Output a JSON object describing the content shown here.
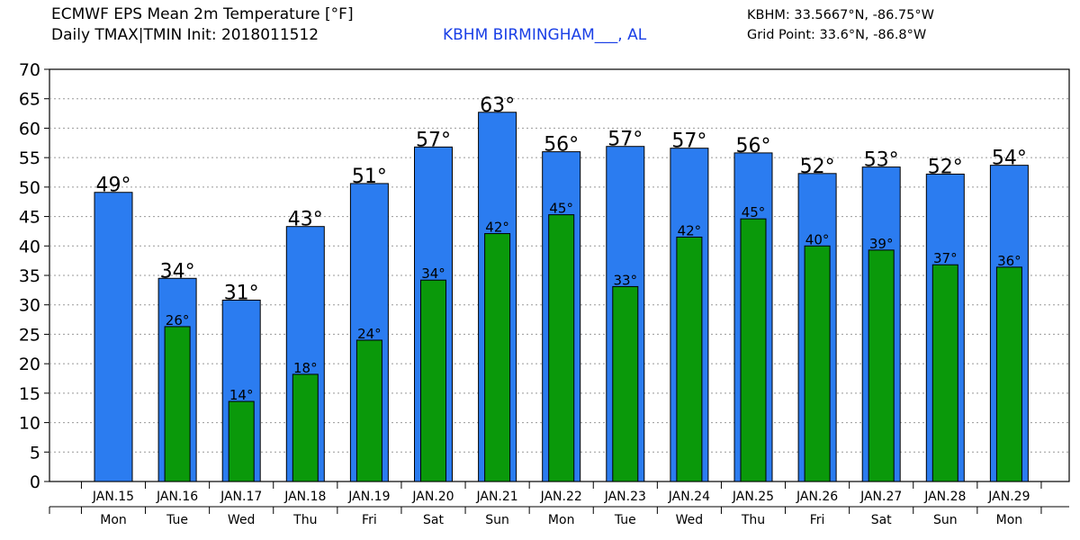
{
  "header": {
    "title_line1": "ECMWF EPS Mean 2m Temperature [°F]",
    "title_line2": "Daily TMAX|TMIN Init: 2018011512",
    "station": "KBHM BIRMINGHAM___, AL",
    "coords": "KBHM: 33.5667°N, -86.75°W",
    "grid_point": "Grid Point: 33.6°N, -86.8°W"
  },
  "colors": {
    "tmax": "#2b7cf0",
    "tmin": "#0a990a",
    "grid": "#999999",
    "station_text": "#1a3fe6"
  },
  "chart_data": {
    "type": "bar",
    "title": "ECMWF EPS Mean 2m Temperature [°F]",
    "categories": [
      "JAN.15",
      "JAN.16",
      "JAN.17",
      "JAN.18",
      "JAN.19",
      "JAN.20",
      "JAN.21",
      "JAN.22",
      "JAN.23",
      "JAN.24",
      "JAN.25",
      "JAN.26",
      "JAN.27",
      "JAN.28",
      "JAN.29"
    ],
    "weekdays": [
      "Mon",
      "Tue",
      "Wed",
      "Thu",
      "Fri",
      "Sat",
      "Sun",
      "Mon",
      "Tue",
      "Wed",
      "Thu",
      "Fri",
      "Sat",
      "Sun",
      "Mon"
    ],
    "series": [
      {
        "key": "tmax",
        "values": [
          49.1,
          34.5,
          30.8,
          43.3,
          50.6,
          56.8,
          62.7,
          56.0,
          56.9,
          56.6,
          55.8,
          52.3,
          53.4,
          52.2,
          53.7
        ],
        "labels": [
          "49°",
          "34°",
          "31°",
          "43°",
          "51°",
          "57°",
          "63°",
          "56°",
          "57°",
          "57°",
          "56°",
          "52°",
          "53°",
          "52°",
          "54°"
        ]
      },
      {
        "key": "tmin",
        "values": [
          null,
          26.3,
          13.6,
          18.2,
          24.0,
          34.2,
          42.1,
          45.3,
          33.1,
          41.5,
          44.6,
          40.0,
          39.3,
          36.8,
          36.4
        ],
        "labels": [
          "",
          "26°",
          "14°",
          "18°",
          "24°",
          "34°",
          "42°",
          "45°",
          "33°",
          "42°",
          "45°",
          "40°",
          "39°",
          "37°",
          "36°"
        ]
      }
    ],
    "ylim": [
      0,
      70
    ],
    "yticks": [
      0,
      5,
      10,
      15,
      20,
      25,
      30,
      35,
      40,
      45,
      50,
      55,
      60,
      65,
      70
    ],
    "grid": true,
    "legend": "none"
  }
}
